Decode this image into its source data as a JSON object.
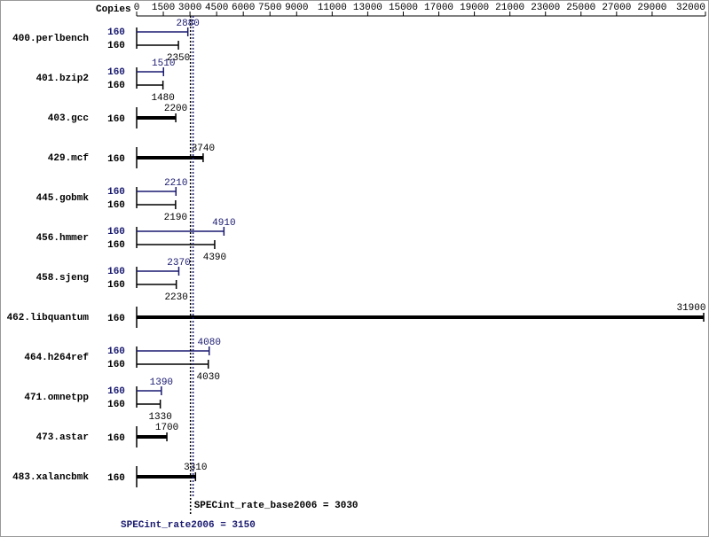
{
  "chart_data": {
    "type": "bar",
    "copies_header": "Copies",
    "categories": [
      "400.perlbench",
      "401.bzip2",
      "403.gcc",
      "429.mcf",
      "445.gobmk",
      "456.hmmer",
      "458.sjeng",
      "462.libquantum",
      "464.h264ref",
      "471.omnetpp",
      "473.astar",
      "483.xalancbmk"
    ],
    "series": [
      {
        "color": "#191970",
        "copies": [
          160,
          160,
          null,
          null,
          160,
          160,
          160,
          null,
          160,
          160,
          null,
          null
        ],
        "values": [
          2880,
          1510,
          null,
          null,
          2210,
          4910,
          2370,
          null,
          4080,
          1390,
          null,
          null
        ]
      },
      {
        "color": "#000000",
        "copies": [
          160,
          160,
          160,
          160,
          160,
          160,
          160,
          160,
          160,
          160,
          160,
          160
        ],
        "values": [
          2350,
          1480,
          2200,
          3740,
          2190,
          4390,
          2230,
          31900,
          4030,
          1330,
          1700,
          3310
        ]
      }
    ],
    "xlim": [
      0,
      32000
    ],
    "xticks": [
      0,
      1500,
      3000,
      4500,
      6000,
      7500,
      9000,
      11000,
      13000,
      15000,
      17000,
      19000,
      21000,
      23000,
      25000,
      27000,
      29000,
      32000
    ],
    "reference_lines": [
      {
        "label": "SPECint_rate_base2006 = 3030",
        "value": 3030,
        "color": "#000000"
      },
      {
        "label": "SPECint_rate2006 = 3150",
        "value": 3150,
        "color": "#191970"
      }
    ]
  }
}
